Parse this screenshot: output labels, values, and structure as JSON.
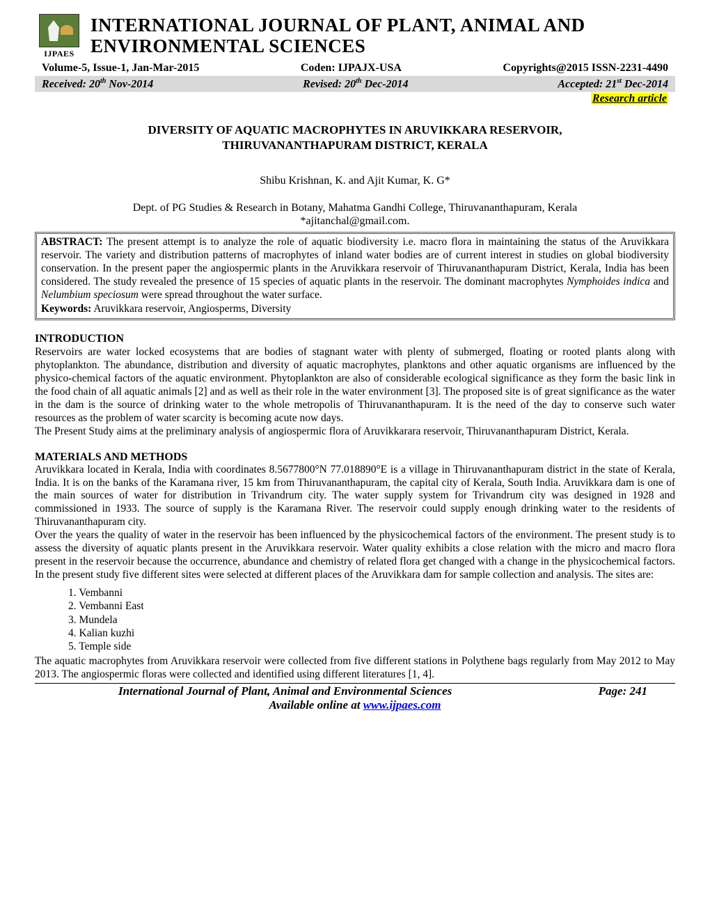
{
  "logo": {
    "acronym": "IJPAES"
  },
  "journal": {
    "title_line1": "INTERNATIONAL JOURNAL OF PLANT, ANIMAL AND",
    "title_line2": "ENVIRONMENTAL SCIENCES"
  },
  "meta": {
    "volume": "Volume-5, Issue-1, Jan-Mar-2015",
    "coden": "Coden: IJPAJX-USA",
    "copyright": "Copyrights@2015 ISSN-2231-4490"
  },
  "dates": {
    "received_label": "Received: 20",
    "received_sup": "th",
    "received_rest": " Nov-2014",
    "revised_label": "Revised: 20",
    "revised_sup": "th",
    "revised_rest": " Dec-2014",
    "accepted_label": "Accepted: 21",
    "accepted_sup": "st",
    "accepted_rest": " Dec-2014"
  },
  "article_type": "Research article",
  "title": {
    "line1": "DIVERSITY OF AQUATIC MACROPHYTES IN ARUVIKKARA RESERVOIR,",
    "line2": "THIRUVANANTHAPURAM DISTRICT, KERALA"
  },
  "authors": "Shibu Krishnan, K. and Ajit Kumar, K. G*",
  "affiliation": {
    "line1": "Dept. of PG Studies & Research in Botany, Mahatma Gandhi College, Thiruvananthapuram, Kerala",
    "line2": "*ajitanchal@gmail.com."
  },
  "abstract": {
    "label": "ABSTRACT:",
    "text_part1": " The present attempt is to analyze the role of aquatic biodiversity i.e. macro flora in maintaining the status of the Aruvikkara reservoir. The variety and distribution patterns of macrophytes of inland water bodies are of current interest in studies on global biodiversity conservation. In the present paper the angiospermic plants in the Aruvikkara reservoir of Thiruvananthapuram District, Kerala, India has been considered. The study revealed the presence of 15 species of aquatic plants in the reservoir. The dominant macrophytes ",
    "italic1": "Nymphoides indica",
    "text_part2": " and ",
    "italic2": "Nelumbium speciosum",
    "text_part3": " were spread throughout the water surface.",
    "keywords_label": "Keywords:",
    "keywords_text": " Aruvikkara reservoir, Angiosperms, Diversity"
  },
  "sections": {
    "intro_heading": "INTRODUCTION",
    "intro_firstword": "Reservoirs ",
    "intro_p1": "are water locked ecosystems that are bodies of stagnant water with plenty of submerged, floating or rooted plants along with phytoplankton. The abundance, distribution and diversity of aquatic macrophytes, planktons and other aquatic organisms are influenced by the physico-chemical factors of the aquatic environment. Phytoplankton are also of considerable ecological significance as they form the basic link in the food chain of all aquatic animals [2] and as well as their role in the water environment [3]. The proposed site is of great significance as the water in the dam is the source of drinking water to the whole metropolis of Thiruvananthapuram. It is the need of the day to conserve such water resources as the problem of water scarcity is becoming acute now days.",
    "intro_p2": "The Present Study aims at the preliminary analysis of angiospermic flora of Aruvikkarara reservoir, Thiruvananthapuram District, Kerala.",
    "methods_heading": "MATERIALS AND METHODS",
    "methods_p1": "Aruvikkara located in Kerala, India with coordinates 8.5677800°N 77.018890°E is a village in Thiruvananthapuram district in the state of Kerala, India. It is on the banks of the Karamana river, 15 km from Thiruvananthapuram, the capital city of Kerala, South India. Aruvikkara dam is one of the main sources of water for distribution in Trivandrum city. The water supply system for Trivandrum city was designed in 1928 and commissioned in 1933. The source of supply is the Karamana River. The reservoir could supply enough drinking water to the residents of Thiruvananthapuram city.",
    "methods_p2": "Over the years the quality of water in the reservoir has been influenced by the physicochemical factors of the environment. The present study is to assess the diversity of aquatic plants present in the Aruvikkara reservoir. Water quality exhibits a close relation with the micro and macro flora present in the reservoir because the occurrence, abundance and chemistry of related flora get changed with a change in the physicochemical factors. In the present study five different sites were selected at different places of the Aruvikkara dam for sample collection and analysis. The sites are:",
    "sites": [
      "1. Vembanni",
      "2. Vembanni East",
      "3. Mundela",
      "4. Kalian kuzhi",
      "5. Temple side"
    ],
    "methods_p3": "The aquatic macrophytes from Aruvikkara reservoir were collected from five different stations in Polythene bags regularly from May 2012 to May 2013.  The angiospermic floras were collected and identified using different literatures [1, 4]."
  },
  "footer": {
    "journal_name": "International Journal of Plant, Animal and Environmental Sciences",
    "page": "Page: 241",
    "available_prefix": "Available online at ",
    "url": "www.ijpaes.com"
  },
  "colors": {
    "background": "#ffffff",
    "text": "#000000",
    "dates_bg": "#d9d9d9",
    "highlight": "#ffff00",
    "link": "#0000ee",
    "logo_bg": "#5a7d3a"
  }
}
